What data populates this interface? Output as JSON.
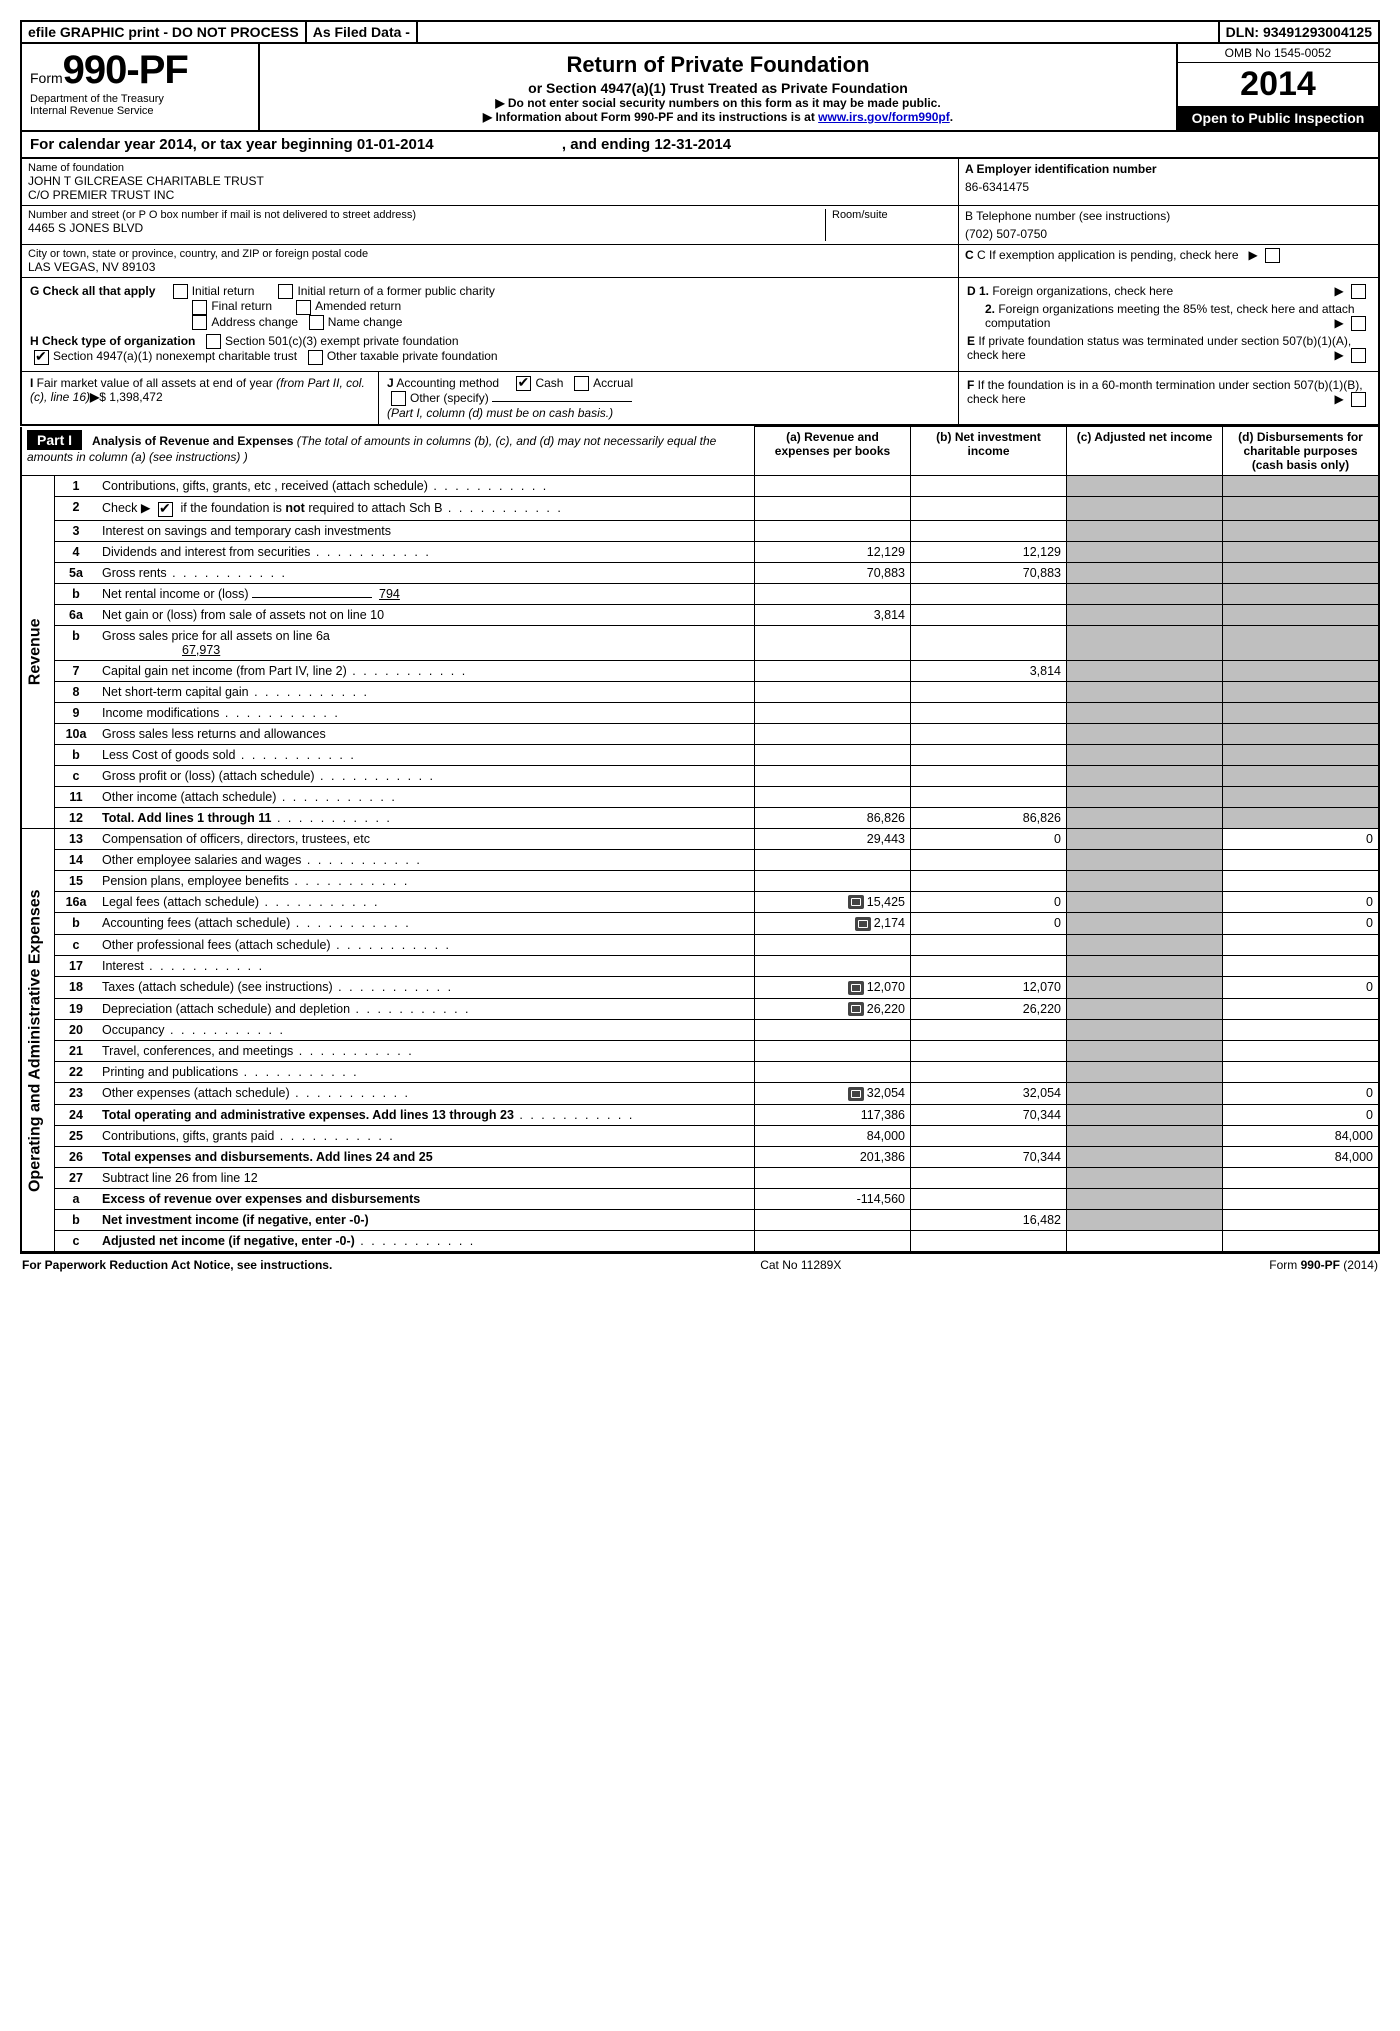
{
  "top_bar": {
    "efile": "efile GRAPHIC print - DO NOT PROCESS",
    "asfiled": "As Filed Data -",
    "dln_label": "DLN:",
    "dln": "93491293004125"
  },
  "header": {
    "form_prefix": "Form",
    "form_number": "990-PF",
    "dept": "Department of the Treasury",
    "irs": "Internal Revenue Service",
    "title": "Return of Private Foundation",
    "subtitle": "or Section 4947(a)(1) Trust Treated as Private Foundation",
    "note1": "▶  Do not enter social security numbers on this form as it may be made public.",
    "note2_pre": "▶ Information about Form 990-PF and its instructions is at ",
    "note2_link": "www.irs.gov/form990pf",
    "note2_post": ".",
    "omb": "OMB No 1545-0052",
    "year": "2014",
    "open": "Open to Public Inspection"
  },
  "cal_year": {
    "pre": "For calendar year 2014, or tax year beginning ",
    "begin": "01-01-2014",
    "mid": ", and ending ",
    "end": "12-31-2014"
  },
  "info": {
    "name_label": "Name of foundation",
    "name1": "JOHN T GILCREASE CHARITABLE TRUST",
    "name2": "C/O PREMIER TRUST INC",
    "addr_label": "Number and street (or P O  box number if mail is not delivered to street address)",
    "room_label": "Room/suite",
    "addr": "4465 S JONES BLVD",
    "city_label": "City or town, state or province, country, and ZIP or foreign postal code",
    "city": "LAS VEGAS, NV  89103",
    "a_label": "A Employer identification number",
    "a_val": "86-6341475",
    "b_label": "B Telephone number (see instructions)",
    "b_val": "(702) 507-0750",
    "c_label": "C  If exemption application is pending, check here"
  },
  "g": {
    "label": "G Check all that apply",
    "opts": [
      "Initial return",
      "Initial return of a former public charity",
      "Final return",
      "Amended return",
      "Address change",
      "Name change"
    ]
  },
  "h": {
    "label": "H Check type of organization",
    "opt1": "Section 501(c)(3) exempt private foundation",
    "opt2": "Section 4947(a)(1) nonexempt charitable trust",
    "opt3": "Other taxable private foundation"
  },
  "d": {
    "d1": "D 1.  Foreign organizations, check here",
    "d2": "2.  Foreign organizations meeting the 85% test, check here and attach computation",
    "e": "E  If private foundation status was terminated under section 507(b)(1)(A), check here",
    "f": "F  If the foundation is in a 60-month termination under section 507(b)(1)(B), check here"
  },
  "i": {
    "label": "I Fair market value of all assets at end of year (from Part II, col. (c), line 16)",
    "arrow": "▶",
    "val": "$  1,398,472"
  },
  "j": {
    "label": "J Accounting method",
    "cash": "Cash",
    "accrual": "Accrual",
    "other": "Other (specify)",
    "note": "(Part I, column (d) must be on cash basis.)"
  },
  "part1": {
    "tag": "Part I",
    "title": "Analysis of Revenue and Expenses",
    "title_note": "(The total of amounts in columns (b), (c), and (d) may not necessarily equal the amounts in column (a) (see instructions) )",
    "col_a": "(a) Revenue and expenses per books",
    "col_b": "(b) Net investment income",
    "col_c": "(c) Adjusted net income",
    "col_d": "(d) Disbursements for charitable purposes (cash basis only)"
  },
  "side": {
    "revenue": "Revenue",
    "expenses": "Operating and Administrative Expenses"
  },
  "rows": [
    {
      "n": "1",
      "d": "Contributions, gifts, grants, etc , received (attach schedule)",
      "dots": true
    },
    {
      "n": "2",
      "d_pre": "Check ▶ ",
      "d_post": " if the foundation is ",
      "d_bold": "not",
      "d_end": " required to attach Sch B",
      "chk": true,
      "dots": true
    },
    {
      "n": "3",
      "d": "Interest on savings and temporary cash investments"
    },
    {
      "n": "4",
      "d": "Dividends and interest from securities",
      "dots": true,
      "a": "12,129",
      "b": "12,129"
    },
    {
      "n": "5a",
      "d": "Gross rents",
      "dots": true,
      "a": "70,883",
      "b": "70,883"
    },
    {
      "n": "b",
      "d": "Net rental income or (loss) ",
      "blank": "794"
    },
    {
      "n": "6a",
      "d": "Net gain or (loss) from sale of assets not on line 10",
      "a": "3,814"
    },
    {
      "n": "b",
      "d": "Gross sales price for all assets on line 6a",
      "blank2": "67,973"
    },
    {
      "n": "7",
      "d": "Capital gain net income (from Part IV, line 2)",
      "dots": true,
      "b": "3,814"
    },
    {
      "n": "8",
      "d": "Net short-term capital gain",
      "dots": true
    },
    {
      "n": "9",
      "d": "Income modifications",
      "dots": true
    },
    {
      "n": "10a",
      "d": "Gross sales less returns and allowances"
    },
    {
      "n": "b",
      "d": "Less  Cost of goods sold",
      "dots": true
    },
    {
      "n": "c",
      "d": "Gross profit or (loss) (attach schedule)",
      "dots": true
    },
    {
      "n": "11",
      "d": "Other income (attach schedule)",
      "dots": true
    },
    {
      "n": "12",
      "d": "Total. Add lines 1 through 11",
      "bold": true,
      "dots": true,
      "a": "86,826",
      "b": "86,826"
    },
    {
      "n": "13",
      "d": "Compensation of officers, directors, trustees, etc",
      "a": "29,443",
      "b": "0",
      "dcol": "0"
    },
    {
      "n": "14",
      "d": "Other employee salaries and wages",
      "dots": true
    },
    {
      "n": "15",
      "d": "Pension plans, employee benefits",
      "dots": true
    },
    {
      "n": "16a",
      "d": "Legal fees (attach schedule)",
      "dots": true,
      "att": true,
      "a": "15,425",
      "b": "0",
      "dcol": "0"
    },
    {
      "n": "b",
      "d": "Accounting fees (attach schedule)",
      "dots": true,
      "att": true,
      "a": "2,174",
      "b": "0",
      "dcol": "0"
    },
    {
      "n": "c",
      "d": "Other professional fees (attach schedule)",
      "dots": true
    },
    {
      "n": "17",
      "d": "Interest",
      "dots": true
    },
    {
      "n": "18",
      "d": "Taxes (attach schedule) (see instructions)",
      "dots": true,
      "att": true,
      "a": "12,070",
      "b": "12,070",
      "dcol": "0"
    },
    {
      "n": "19",
      "d": "Depreciation (attach schedule) and depletion",
      "dots": true,
      "att": true,
      "a": "26,220",
      "b": "26,220"
    },
    {
      "n": "20",
      "d": "Occupancy",
      "dots": true
    },
    {
      "n": "21",
      "d": "Travel, conferences, and meetings",
      "dots": true
    },
    {
      "n": "22",
      "d": "Printing and publications",
      "dots": true
    },
    {
      "n": "23",
      "d": "Other expenses (attach schedule)",
      "dots": true,
      "att": true,
      "a": "32,054",
      "b": "32,054",
      "dcol": "0"
    },
    {
      "n": "24",
      "d": "Total operating and administrative expenses. Add lines 13 through 23",
      "bold": true,
      "dots": true,
      "a": "117,386",
      "b": "70,344",
      "dcol": "0"
    },
    {
      "n": "25",
      "d": "Contributions, gifts, grants paid",
      "dots": true,
      "a": "84,000",
      "dcol": "84,000"
    },
    {
      "n": "26",
      "d": "Total expenses and disbursements. Add lines 24 and 25",
      "bold": true,
      "a": "201,386",
      "b": "70,344",
      "dcol": "84,000"
    },
    {
      "n": "27",
      "d": "Subtract line 26 from line 12"
    },
    {
      "n": "a",
      "d": "Excess of revenue over expenses and disbursements",
      "bold": true,
      "a": "-114,560"
    },
    {
      "n": "b",
      "d": "Net investment income (if negative, enter -0-)",
      "bold": true,
      "b": "16,482"
    },
    {
      "n": "c",
      "d": "Adjusted net income (if negative, enter -0-)",
      "bold": true,
      "dots": true
    }
  ],
  "footer": {
    "left": "For Paperwork Reduction Act Notice, see instructions.",
    "mid": "Cat No  11289X",
    "right_pre": "Form ",
    "right_form": "990-PF",
    "right_post": " (2014)"
  }
}
